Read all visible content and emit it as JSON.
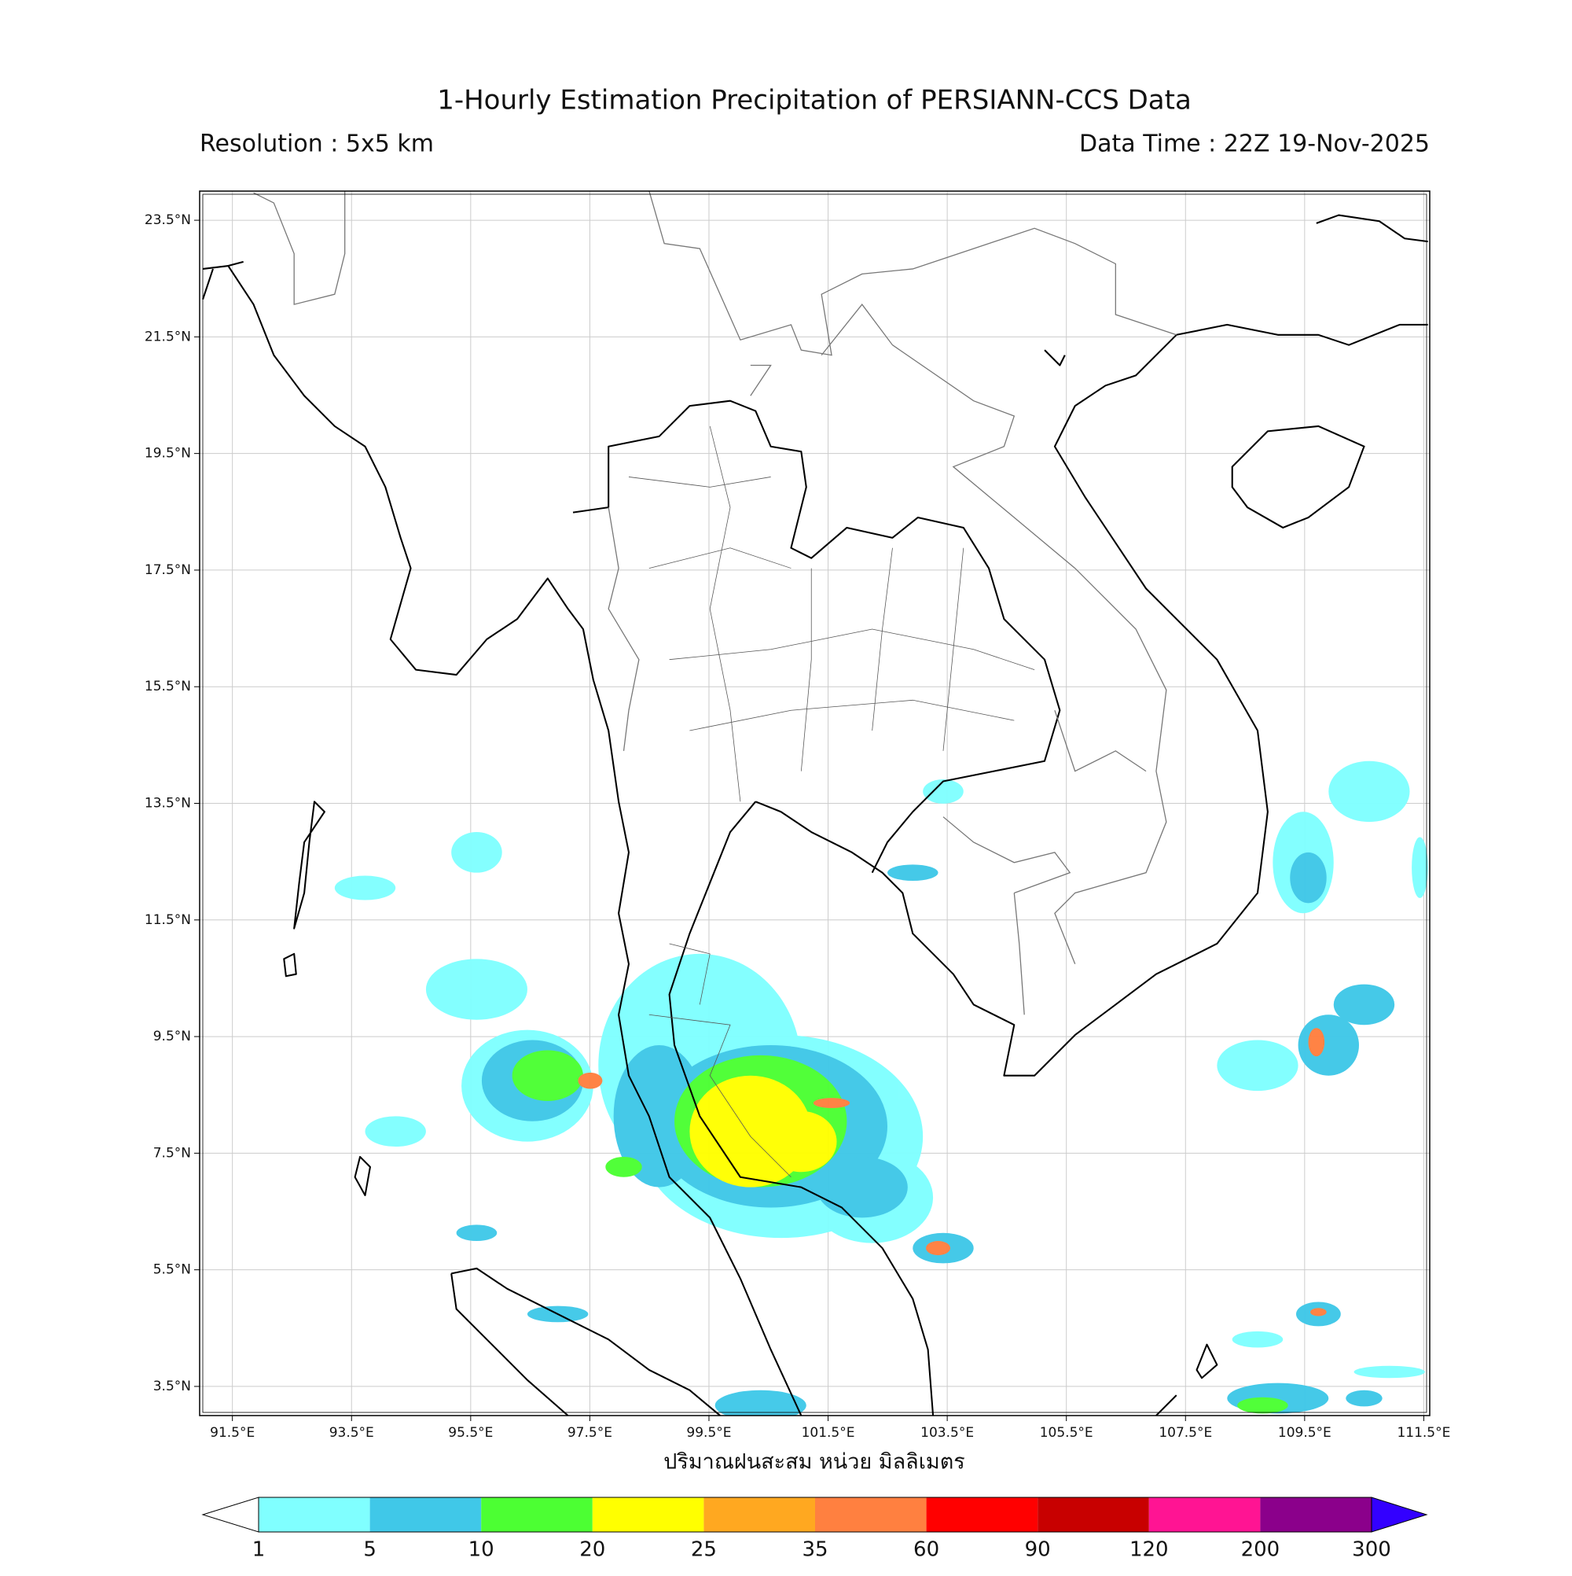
{
  "title": "1-Hourly Estimation Precipitation of PERSIANN-CCS Data",
  "resolution": "Resolution : 5x5 km",
  "data_time": "Data Time : 22Z 19-Nov-2025",
  "map": {
    "lon_range": [
      90.95,
      111.6
    ],
    "lat_range": [
      3.0,
      24.0
    ],
    "grid": true,
    "lon_ticks": [
      {
        "value": 91.5,
        "label": "91.5°E"
      },
      {
        "value": 93.5,
        "label": "93.5°E"
      },
      {
        "value": 95.5,
        "label": "95.5°E"
      },
      {
        "value": 97.5,
        "label": "97.5°E"
      },
      {
        "value": 99.5,
        "label": "99.5°E"
      },
      {
        "value": 101.5,
        "label": "101.5°E"
      },
      {
        "value": 103.5,
        "label": "103.5°E"
      },
      {
        "value": 105.5,
        "label": "105.5°E"
      },
      {
        "value": 107.5,
        "label": "107.5°E"
      },
      {
        "value": 109.5,
        "label": "109.5°E"
      },
      {
        "value": 111.5,
        "label": "111.5°E"
      }
    ],
    "lat_ticks": [
      {
        "value": 23.5,
        "label": "23.5°N"
      },
      {
        "value": 21.5,
        "label": "21.5°N"
      },
      {
        "value": 19.5,
        "label": "19.5°N"
      },
      {
        "value": 17.5,
        "label": "17.5°N"
      },
      {
        "value": 15.5,
        "label": "15.5°N"
      },
      {
        "value": 13.5,
        "label": "13.5°N"
      },
      {
        "value": 11.5,
        "label": "11.5°N"
      },
      {
        "value": 9.5,
        "label": "9.5°N"
      },
      {
        "value": 7.5,
        "label": "7.5°N"
      },
      {
        "value": 5.5,
        "label": "5.5°N"
      },
      {
        "value": 3.5,
        "label": "3.5°N"
      }
    ]
  },
  "xlabel": "ปริมาณฝนสะสม หน่วย มิลลิเมตร",
  "colorbar": {
    "levels": [
      1,
      5,
      10,
      20,
      25,
      35,
      60,
      90,
      120,
      200,
      300
    ],
    "colors": [
      "#80ffff",
      "#40c8e8",
      "#4cff33",
      "#ffff00",
      "#ffa820",
      "#ff8040",
      "#ff0000",
      "#c80000",
      "#ff1493",
      "#8b008b"
    ],
    "under_color": "#ffffff",
    "over_color": "#3300ff"
  }
}
